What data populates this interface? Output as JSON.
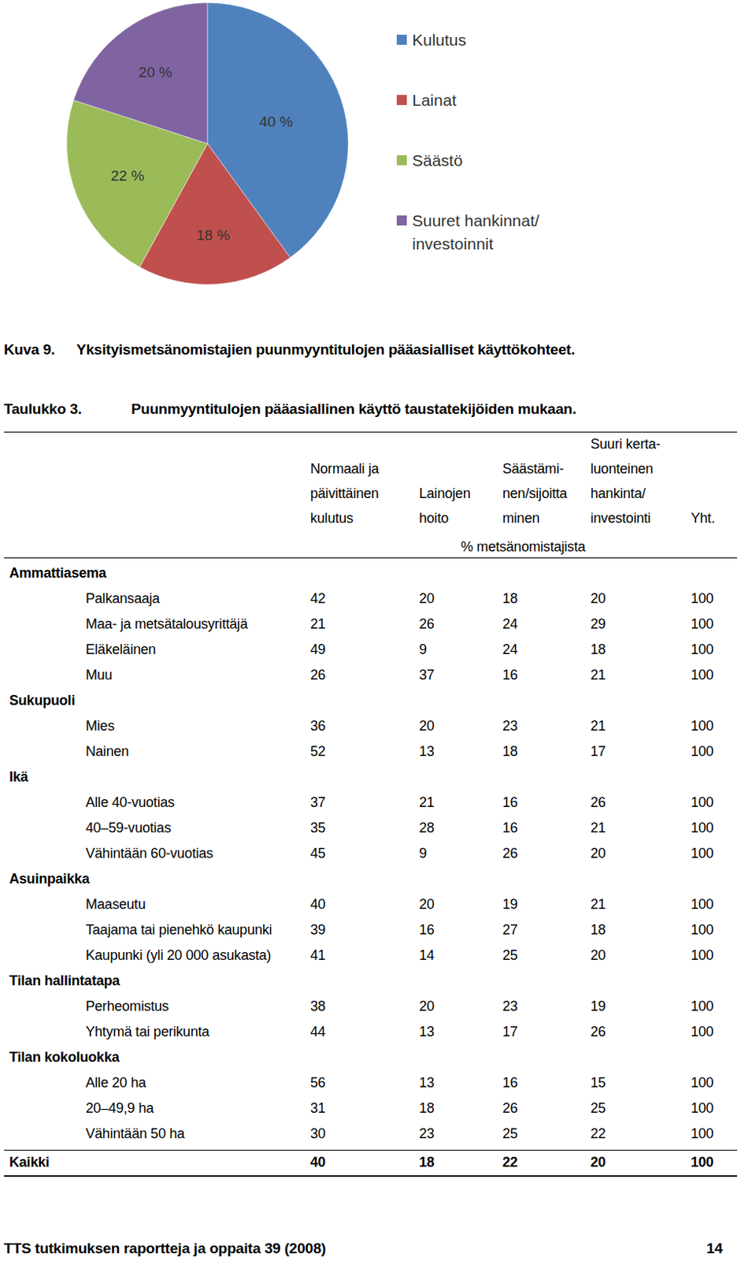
{
  "chart_data": {
    "type": "pie",
    "categories": [
      "Kulutus",
      "Lainat",
      "Säästö",
      "Suuret hankinnat/investoinnit"
    ],
    "values": [
      40,
      18,
      22,
      20
    ],
    "value_labels": [
      "40 %",
      "18 %",
      "22 %",
      "20 %"
    ],
    "colors": [
      "#4f81bd",
      "#c0504d",
      "#9bbb59",
      "#8064a2"
    ],
    "legend": "right",
    "data_labels": true
  },
  "figure_caption": {
    "label": "Kuva 9.",
    "text": "Yksityismetsänomistajien puunmyyntitulojen pääasialliset käyttökohteet."
  },
  "table_caption": {
    "label": "Taulukko 3.",
    "text": "Puunmyyntitulojen pääasiallinen käyttö taustatekijöiden mukaan."
  },
  "table": {
    "columns": [
      [
        "Normaali ja",
        "päivittäinen",
        "kulutus"
      ],
      [
        "Lainojen",
        "hoito"
      ],
      [
        "Säästämi-",
        "nen/sijoitta",
        "minen"
      ],
      [
        "Suuri kerta-",
        "luonteinen",
        "hankinta/",
        "investointi"
      ],
      [
        "Yht."
      ]
    ],
    "unit": "% metsänomistajista",
    "groups": [
      {
        "name": "Ammattiasema",
        "rows": [
          {
            "label": "Palkansaaja",
            "values": [
              42,
              20,
              18,
              20,
              100
            ]
          },
          {
            "label": "Maa- ja metsätalousyrittäjä",
            "values": [
              21,
              26,
              24,
              29,
              100
            ]
          },
          {
            "label": "Eläkeläinen",
            "values": [
              49,
              9,
              24,
              18,
              100
            ]
          },
          {
            "label": "Muu",
            "values": [
              26,
              37,
              16,
              21,
              100
            ]
          }
        ]
      },
      {
        "name": "Sukupuoli",
        "rows": [
          {
            "label": "Mies",
            "values": [
              36,
              20,
              23,
              21,
              100
            ]
          },
          {
            "label": "Nainen",
            "values": [
              52,
              13,
              18,
              17,
              100
            ]
          }
        ]
      },
      {
        "name": "Ikä",
        "rows": [
          {
            "label": "Alle 40-vuotias",
            "values": [
              37,
              21,
              16,
              26,
              100
            ]
          },
          {
            "label": "40–59-vuotias",
            "values": [
              35,
              28,
              16,
              21,
              100
            ]
          },
          {
            "label": "Vähintään 60-vuotias",
            "values": [
              45,
              9,
              26,
              20,
              100
            ]
          }
        ]
      },
      {
        "name": "Asuinpaikka",
        "rows": [
          {
            "label": "Maaseutu",
            "values": [
              40,
              20,
              19,
              21,
              100
            ]
          },
          {
            "label": "Taajama tai pienehkö kaupunki",
            "values": [
              39,
              16,
              27,
              18,
              100
            ]
          },
          {
            "label": "Kaupunki (yli 20 000 asukasta)",
            "values": [
              41,
              14,
              25,
              20,
              100
            ]
          }
        ]
      },
      {
        "name": "Tilan hallintatapa",
        "rows": [
          {
            "label": "Perheomistus",
            "values": [
              38,
              20,
              23,
              19,
              100
            ]
          },
          {
            "label": "Yhtymä tai perikunta",
            "values": [
              44,
              13,
              17,
              26,
              100
            ]
          }
        ]
      },
      {
        "name": "Tilan kokoluokka",
        "rows": [
          {
            "label": "Alle 20 ha",
            "values": [
              56,
              13,
              16,
              15,
              100
            ]
          },
          {
            "label": "20–49,9 ha",
            "values": [
              31,
              18,
              26,
              25,
              100
            ]
          },
          {
            "label": "Vähintään 50 ha",
            "values": [
              30,
              23,
              25,
              22,
              100
            ]
          }
        ]
      }
    ],
    "total": {
      "label": "Kaikki",
      "values": [
        40,
        18,
        22,
        20,
        100
      ]
    }
  },
  "footer": {
    "text": "TTS tutkimuksen raportteja ja oppaita 39 (2008)",
    "page": 14
  }
}
